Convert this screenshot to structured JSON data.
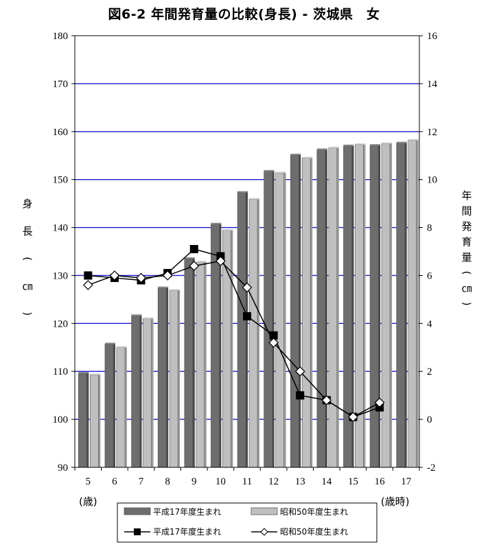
{
  "chart_data": {
    "type": "bar",
    "title": "図6-2 年間発育量の比較(身長) - 茨城県　女",
    "categories": [
      "5",
      "6",
      "7",
      "8",
      "9",
      "10",
      "11",
      "12",
      "13",
      "14",
      "15",
      "16",
      "17"
    ],
    "x_unit_first": "(歳)",
    "x_unit_last": "(歳時)",
    "ylabel_left": "身長(㎝)",
    "ylabel_right": "年間発育量(㎝)",
    "y_left_lim": [
      90,
      180
    ],
    "y_left_ticks": [
      "90",
      "100",
      "110",
      "120",
      "130",
      "140",
      "150",
      "160",
      "170",
      "180"
    ],
    "y_right_lim": [
      -2,
      16
    ],
    "y_right_ticks": [
      "-2",
      "0",
      "2",
      "4",
      "6",
      "8",
      "10",
      "12",
      "14",
      "16"
    ],
    "grid": true,
    "legend_position": "bottom",
    "bar_series": [
      {
        "name": "平成17年度生まれ",
        "axis": "left",
        "color": "#6e6e6e",
        "values": [
          109.6,
          115.7,
          121.6,
          127.4,
          133.5,
          140.7,
          147.3,
          151.7,
          155.1,
          156.2,
          157.0,
          157.1,
          157.6
        ]
      },
      {
        "name": "昭和50年度生まれ",
        "axis": "left",
        "color": "#bfbfbf",
        "values": [
          109.3,
          115.0,
          121.0,
          126.9,
          132.8,
          139.4,
          145.9,
          151.4,
          154.5,
          156.6,
          157.3,
          157.5,
          158.2
        ]
      }
    ],
    "line_series": [
      {
        "name": "平成17年度生まれ",
        "axis": "right",
        "marker": "square",
        "values": [
          6.0,
          5.9,
          5.8,
          6.1,
          7.1,
          6.8,
          4.3,
          3.5,
          1.0,
          0.8,
          0.1,
          0.5
        ]
      },
      {
        "name": "昭和50年度生まれ",
        "axis": "right",
        "marker": "diamond",
        "values": [
          5.6,
          6.0,
          5.9,
          6.0,
          6.4,
          6.6,
          5.5,
          3.2,
          2.0,
          0.8,
          0.1,
          0.7
        ]
      }
    ]
  }
}
